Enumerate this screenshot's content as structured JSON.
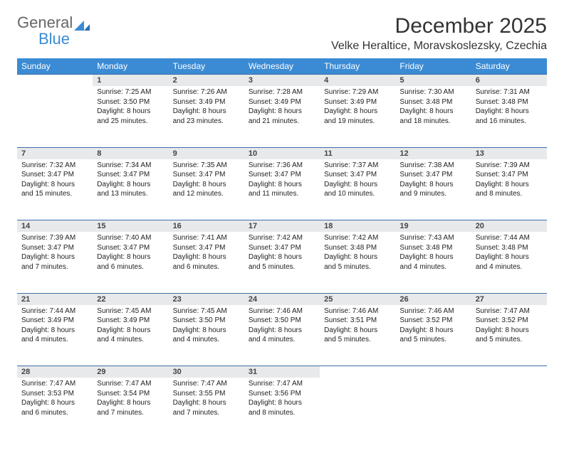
{
  "logo": {
    "general": "General",
    "blue": "Blue"
  },
  "title": "December 2025",
  "location": "Velke Heraltice, Moravskoslezsky, Czechia",
  "colors": {
    "header_bg": "#3b8bd4",
    "header_text": "#ffffff",
    "daynum_bg": "#e8e9ea",
    "row_divider": "#3b6ea8",
    "body_text": "#222222",
    "title_text": "#333333"
  },
  "day_headers": [
    "Sunday",
    "Monday",
    "Tuesday",
    "Wednesday",
    "Thursday",
    "Friday",
    "Saturday"
  ],
  "weeks": [
    {
      "nums": [
        "",
        "1",
        "2",
        "3",
        "4",
        "5",
        "6"
      ],
      "cells": [
        null,
        {
          "sr": "7:25 AM",
          "ss": "3:50 PM",
          "dl": "8 hours and 25 minutes."
        },
        {
          "sr": "7:26 AM",
          "ss": "3:49 PM",
          "dl": "8 hours and 23 minutes."
        },
        {
          "sr": "7:28 AM",
          "ss": "3:49 PM",
          "dl": "8 hours and 21 minutes."
        },
        {
          "sr": "7:29 AM",
          "ss": "3:49 PM",
          "dl": "8 hours and 19 minutes."
        },
        {
          "sr": "7:30 AM",
          "ss": "3:48 PM",
          "dl": "8 hours and 18 minutes."
        },
        {
          "sr": "7:31 AM",
          "ss": "3:48 PM",
          "dl": "8 hours and 16 minutes."
        }
      ]
    },
    {
      "nums": [
        "7",
        "8",
        "9",
        "10",
        "11",
        "12",
        "13"
      ],
      "cells": [
        {
          "sr": "7:32 AM",
          "ss": "3:47 PM",
          "dl": "8 hours and 15 minutes."
        },
        {
          "sr": "7:34 AM",
          "ss": "3:47 PM",
          "dl": "8 hours and 13 minutes."
        },
        {
          "sr": "7:35 AM",
          "ss": "3:47 PM",
          "dl": "8 hours and 12 minutes."
        },
        {
          "sr": "7:36 AM",
          "ss": "3:47 PM",
          "dl": "8 hours and 11 minutes."
        },
        {
          "sr": "7:37 AM",
          "ss": "3:47 PM",
          "dl": "8 hours and 10 minutes."
        },
        {
          "sr": "7:38 AM",
          "ss": "3:47 PM",
          "dl": "8 hours and 9 minutes."
        },
        {
          "sr": "7:39 AM",
          "ss": "3:47 PM",
          "dl": "8 hours and 8 minutes."
        }
      ]
    },
    {
      "nums": [
        "14",
        "15",
        "16",
        "17",
        "18",
        "19",
        "20"
      ],
      "cells": [
        {
          "sr": "7:39 AM",
          "ss": "3:47 PM",
          "dl": "8 hours and 7 minutes."
        },
        {
          "sr": "7:40 AM",
          "ss": "3:47 PM",
          "dl": "8 hours and 6 minutes."
        },
        {
          "sr": "7:41 AM",
          "ss": "3:47 PM",
          "dl": "8 hours and 6 minutes."
        },
        {
          "sr": "7:42 AM",
          "ss": "3:47 PM",
          "dl": "8 hours and 5 minutes."
        },
        {
          "sr": "7:42 AM",
          "ss": "3:48 PM",
          "dl": "8 hours and 5 minutes."
        },
        {
          "sr": "7:43 AM",
          "ss": "3:48 PM",
          "dl": "8 hours and 4 minutes."
        },
        {
          "sr": "7:44 AM",
          "ss": "3:48 PM",
          "dl": "8 hours and 4 minutes."
        }
      ]
    },
    {
      "nums": [
        "21",
        "22",
        "23",
        "24",
        "25",
        "26",
        "27"
      ],
      "cells": [
        {
          "sr": "7:44 AM",
          "ss": "3:49 PM",
          "dl": "8 hours and 4 minutes."
        },
        {
          "sr": "7:45 AM",
          "ss": "3:49 PM",
          "dl": "8 hours and 4 minutes."
        },
        {
          "sr": "7:45 AM",
          "ss": "3:50 PM",
          "dl": "8 hours and 4 minutes."
        },
        {
          "sr": "7:46 AM",
          "ss": "3:50 PM",
          "dl": "8 hours and 4 minutes."
        },
        {
          "sr": "7:46 AM",
          "ss": "3:51 PM",
          "dl": "8 hours and 5 minutes."
        },
        {
          "sr": "7:46 AM",
          "ss": "3:52 PM",
          "dl": "8 hours and 5 minutes."
        },
        {
          "sr": "7:47 AM",
          "ss": "3:52 PM",
          "dl": "8 hours and 5 minutes."
        }
      ]
    },
    {
      "nums": [
        "28",
        "29",
        "30",
        "31",
        "",
        "",
        ""
      ],
      "cells": [
        {
          "sr": "7:47 AM",
          "ss": "3:53 PM",
          "dl": "8 hours and 6 minutes."
        },
        {
          "sr": "7:47 AM",
          "ss": "3:54 PM",
          "dl": "8 hours and 7 minutes."
        },
        {
          "sr": "7:47 AM",
          "ss": "3:55 PM",
          "dl": "8 hours and 7 minutes."
        },
        {
          "sr": "7:47 AM",
          "ss": "3:56 PM",
          "dl": "8 hours and 8 minutes."
        },
        null,
        null,
        null
      ]
    }
  ],
  "labels": {
    "sunrise": "Sunrise: ",
    "sunset": "Sunset: ",
    "daylight": "Daylight: "
  }
}
